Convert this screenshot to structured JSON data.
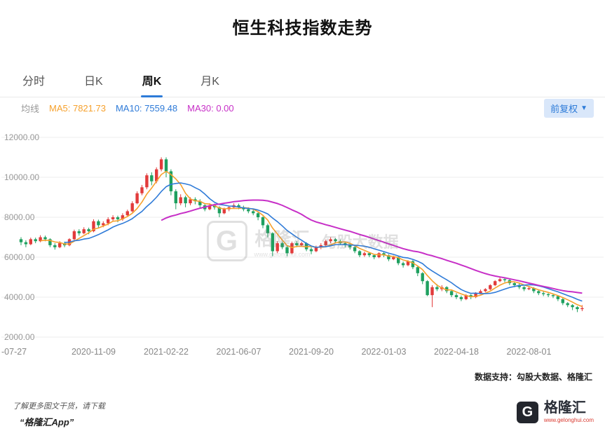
{
  "header": {
    "title": "恒生科技指数走势"
  },
  "tabs": [
    {
      "label": "分时",
      "active": false
    },
    {
      "label": "日K",
      "active": false
    },
    {
      "label": "周K",
      "active": true
    },
    {
      "label": "月K",
      "active": false
    }
  ],
  "legend": {
    "prefix": "均线",
    "ma5_label": "MA5: 7821.73",
    "ma10_label": "MA10: 7559.48",
    "ma30_label": "MA30: 0.00"
  },
  "adjust_button": {
    "label": "前复权",
    "caret": "▼"
  },
  "watermark": {
    "logo_letter": "G",
    "brand": "格隆汇",
    "url": "www.gelonghui.com",
    "suffix": "勾股大数据"
  },
  "footnote": {
    "data_support": "数据支持：勾股大数据、格隆汇"
  },
  "footer": {
    "promo_line1": "了解更多图文干货，请下载",
    "promo_line2": "“格隆汇App”",
    "logo_letter": "G",
    "brand": "格隆汇",
    "brand_url": "www.gelonghui.com"
  },
  "colors": {
    "up": "#e23b3b",
    "down": "#1ea05f",
    "ma5": "#f6a12d",
    "ma10": "#2f7bd8",
    "ma30": "#c72fc7",
    "accent_blue": "#2d7bd8",
    "grid": "#ececec",
    "axis_text": "#999999"
  },
  "chart_data": {
    "type": "candlestick",
    "title": "恒生科技指数走势",
    "period": "周K",
    "ylim": [
      2000,
      12000
    ],
    "y_ticks": [
      12000,
      10000,
      8000,
      6000,
      4000,
      2000
    ],
    "y_tick_labels": [
      "12000.00",
      "10000.00",
      "8000.00",
      "6000.00",
      "4000.00",
      "2000.00"
    ],
    "x_tick_indices": [
      0,
      15,
      30,
      45,
      60,
      75,
      90,
      105
    ],
    "x_tick_labels": [
      "-07-27",
      "2020-11-09",
      "2021-02-22",
      "2021-06-07",
      "2021-09-20",
      "2022-01-03",
      "2022-04-18",
      "2022-08-01"
    ],
    "ma_periods": {
      "ma5": 5,
      "ma10": 10,
      "ma30": 30
    },
    "candles": [
      [
        6900,
        7000,
        6600,
        6750
      ],
      [
        6750,
        6850,
        6500,
        6650
      ],
      [
        6650,
        6980,
        6600,
        6900
      ],
      [
        6900,
        6980,
        6700,
        6800
      ],
      [
        6800,
        7100,
        6750,
        7000
      ],
      [
        7000,
        7080,
        6800,
        6900
      ],
      [
        6900,
        6950,
        6500,
        6600
      ],
      [
        6600,
        6700,
        6380,
        6500
      ],
      [
        6500,
        6800,
        6450,
        6700
      ],
      [
        6700,
        6780,
        6500,
        6600
      ],
      [
        6600,
        6950,
        6550,
        6900
      ],
      [
        6900,
        7380,
        6850,
        7300
      ],
      [
        7300,
        7400,
        7080,
        7200
      ],
      [
        7200,
        7500,
        7150,
        7400
      ],
      [
        7400,
        7480,
        7150,
        7300
      ],
      [
        7300,
        7900,
        7250,
        7800
      ],
      [
        7800,
        7880,
        7450,
        7600
      ],
      [
        7600,
        7800,
        7500,
        7700
      ],
      [
        7700,
        8000,
        7600,
        7900
      ],
      [
        7900,
        8100,
        7780,
        8000
      ],
      [
        8000,
        8080,
        7750,
        7900
      ],
      [
        7900,
        8200,
        7820,
        8100
      ],
      [
        8100,
        8380,
        8020,
        8300
      ],
      [
        8300,
        8800,
        8250,
        8700
      ],
      [
        8700,
        9300,
        8650,
        9200
      ],
      [
        9200,
        9620,
        9100,
        9500
      ],
      [
        9500,
        10200,
        9400,
        10100
      ],
      [
        10100,
        10250,
        9600,
        9800
      ],
      [
        9800,
        10500,
        9700,
        10400
      ],
      [
        10400,
        11000,
        10300,
        10900
      ],
      [
        10900,
        11000,
        10000,
        10300
      ],
      [
        10300,
        10400,
        9100,
        9300
      ],
      [
        9300,
        9400,
        8400,
        8700
      ],
      [
        8700,
        9150,
        8600,
        9000
      ],
      [
        9000,
        9080,
        8500,
        8700
      ],
      [
        8700,
        9000,
        8600,
        8900
      ],
      [
        8900,
        9000,
        8650,
        8800
      ],
      [
        8800,
        8900,
        8450,
        8600
      ],
      [
        8600,
        8700,
        8300,
        8400
      ],
      [
        8400,
        8700,
        8350,
        8600
      ],
      [
        8600,
        8680,
        8380,
        8500
      ],
      [
        8500,
        8550,
        8000,
        8200
      ],
      [
        8200,
        8480,
        8150,
        8400
      ],
      [
        8400,
        8580,
        8300,
        8500
      ],
      [
        8500,
        8700,
        8420,
        8600
      ],
      [
        8600,
        8680,
        8400,
        8500
      ],
      [
        8500,
        8580,
        8300,
        8400
      ],
      [
        8400,
        8500,
        8200,
        8300
      ],
      [
        8300,
        8400,
        8100,
        8200
      ],
      [
        8200,
        8280,
        7850,
        8000
      ],
      [
        8000,
        8050,
        7450,
        7600
      ],
      [
        7600,
        7680,
        7000,
        7200
      ],
      [
        7200,
        7250,
        6050,
        6300
      ],
      [
        6300,
        6800,
        6200,
        6700
      ],
      [
        6700,
        6780,
        6400,
        6500
      ],
      [
        6500,
        6550,
        6050,
        6200
      ],
      [
        6200,
        6780,
        6150,
        6700
      ],
      [
        6700,
        6800,
        6500,
        6600
      ],
      [
        6600,
        6780,
        6520,
        6700
      ],
      [
        6700,
        6750,
        6300,
        6400
      ],
      [
        6400,
        6500,
        6150,
        6300
      ],
      [
        6300,
        6580,
        6250,
        6500
      ],
      [
        6500,
        6700,
        6400,
        6600
      ],
      [
        6600,
        6880,
        6550,
        6800
      ],
      [
        6800,
        7000,
        6700,
        6900
      ],
      [
        6900,
        6950,
        6700,
        6800
      ],
      [
        6800,
        6880,
        6600,
        6700
      ],
      [
        6700,
        6780,
        6500,
        6600
      ],
      [
        6600,
        6680,
        6380,
        6500
      ],
      [
        6500,
        6550,
        6200,
        6300
      ],
      [
        6300,
        6350,
        6000,
        6100
      ],
      [
        6100,
        6280,
        6020,
        6200
      ],
      [
        6200,
        6250,
        6000,
        6100
      ],
      [
        6100,
        6150,
        5900,
        6000
      ],
      [
        6000,
        6250,
        5950,
        6200
      ],
      [
        6200,
        6250,
        6000,
        6100
      ],
      [
        6100,
        6150,
        5800,
        5900
      ],
      [
        5900,
        6080,
        5850,
        6000
      ],
      [
        6000,
        6050,
        5600,
        5700
      ],
      [
        5700,
        5780,
        5480,
        5600
      ],
      [
        5600,
        5850,
        5550,
        5800
      ],
      [
        5800,
        5850,
        5400,
        5500
      ],
      [
        5500,
        5550,
        5050,
        5200
      ],
      [
        5200,
        5250,
        4650,
        4800
      ],
      [
        4800,
        4850,
        4050,
        4100
      ],
      [
        4100,
        4600,
        3500,
        4500
      ],
      [
        4500,
        4650,
        4300,
        4400
      ],
      [
        4400,
        4600,
        4300,
        4500
      ],
      [
        4500,
        4550,
        4200,
        4300
      ],
      [
        4300,
        4350,
        4000,
        4100
      ],
      [
        4100,
        4200,
        3900,
        4000
      ],
      [
        4000,
        4080,
        3800,
        3900
      ],
      [
        3900,
        4150,
        3850,
        4100
      ],
      [
        4100,
        4150,
        3900,
        4000
      ],
      [
        4000,
        4250,
        3950,
        4200
      ],
      [
        4200,
        4380,
        4150,
        4300
      ],
      [
        4300,
        4450,
        4250,
        4400
      ],
      [
        4400,
        4650,
        4350,
        4600
      ],
      [
        4600,
        4850,
        4550,
        4800
      ],
      [
        4800,
        4980,
        4750,
        4900
      ],
      [
        4900,
        4950,
        4750,
        4850
      ],
      [
        4850,
        4900,
        4600,
        4700
      ],
      [
        4700,
        4780,
        4500,
        4600
      ],
      [
        4600,
        4680,
        4400,
        4500
      ],
      [
        4500,
        4550,
        4300,
        4400
      ],
      [
        4400,
        4520,
        4350,
        4450
      ],
      [
        4450,
        4500,
        4200,
        4300
      ],
      [
        4300,
        4350,
        4100,
        4200
      ],
      [
        4200,
        4280,
        4050,
        4150
      ],
      [
        4150,
        4200,
        4000,
        4100
      ],
      [
        4100,
        4150,
        3950,
        4050
      ],
      [
        4050,
        4100,
        3800,
        3900
      ],
      [
        3900,
        3950,
        3600,
        3700
      ],
      [
        3700,
        3750,
        3500,
        3600
      ],
      [
        3600,
        3650,
        3350,
        3500
      ],
      [
        3500,
        3550,
        3250,
        3400
      ],
      [
        3400,
        3600,
        3300,
        3450
      ]
    ]
  }
}
